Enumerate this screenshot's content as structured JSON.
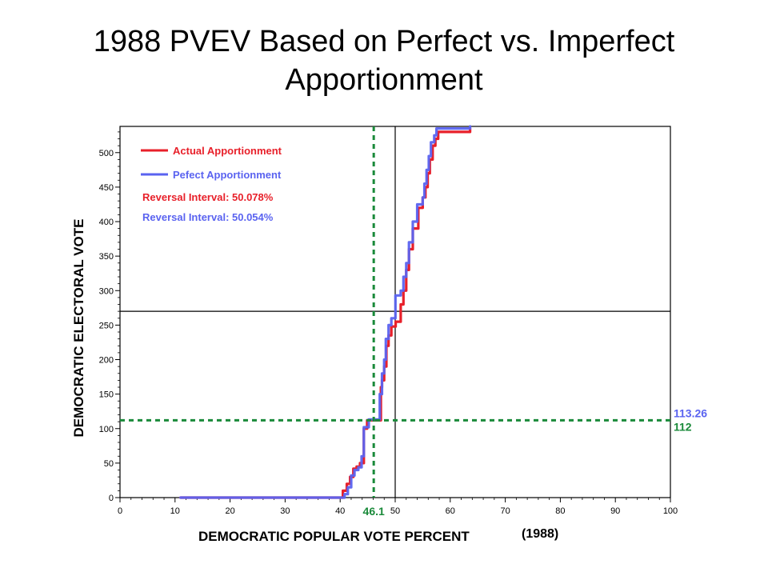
{
  "title_line1": "1988 PVEV Based on Perfect vs. Imperfect",
  "title_line2": "Apportionment",
  "colors": {
    "actual": "#e8202a",
    "perfect": "#5a63f0",
    "guide": "#1a8a3a",
    "axis": "#000000"
  },
  "chart_data": {
    "type": "line",
    "xlabel": "DEMOCRATIC POPULAR VOTE PERCENT",
    "xlabel_suffix": "(1988)",
    "ylabel": "DEMOCRATIC ELECTORAL VOTE",
    "xlim": [
      0,
      100
    ],
    "ylim": [
      0,
      538
    ],
    "x_ticks": [
      0,
      10,
      20,
      30,
      40,
      50,
      60,
      70,
      80,
      90,
      100
    ],
    "y_ticks": [
      0,
      50,
      100,
      150,
      200,
      250,
      300,
      350,
      400,
      450,
      500
    ],
    "legend": {
      "position": "top-left",
      "entries": [
        {
          "series": "actual",
          "label": "Actual Apportionment"
        },
        {
          "series": "perfect",
          "label": "Pefect Apportionment"
        }
      ],
      "notes": [
        {
          "series": "actual",
          "text": "Reversal Interval: 50.078%"
        },
        {
          "series": "perfect",
          "text": "Reversal Interval: 50.054%"
        }
      ]
    },
    "reference_lines": {
      "vertical": 50,
      "horizontal": 270
    },
    "guide_lines": {
      "vertical": 46.1,
      "horizontal": 112
    },
    "annotations": [
      {
        "text": "46.1",
        "series": "guide"
      },
      {
        "text": "113.26",
        "series": "perfect"
      },
      {
        "text": "112",
        "series": "guide"
      }
    ],
    "series": [
      {
        "name": "Actual Apportionment",
        "key": "actual",
        "x": [
          11,
          40.5,
          41.2,
          41.8,
          42.4,
          43,
          43.6,
          44.3,
          44.9,
          46.1,
          47.4,
          47.6,
          48,
          48.4,
          48.8,
          49.3,
          50.08,
          51,
          51.5,
          52,
          52.5,
          53.2,
          54.2,
          55,
          55.5,
          55.9,
          56.3,
          56.8,
          57.3,
          57.8,
          63.6
        ],
        "y": [
          0,
          10,
          20,
          30,
          42,
          45,
          50,
          100,
          112,
          112,
          160,
          170,
          190,
          220,
          235,
          248,
          255,
          280,
          300,
          330,
          360,
          390,
          420,
          435,
          450,
          470,
          490,
          510,
          520,
          530,
          535
        ]
      },
      {
        "name": "Pefect Apportionment",
        "key": "perfect",
        "x": [
          11,
          40.8,
          41.4,
          42,
          42.6,
          43.3,
          43.9,
          44.3,
          45.2,
          46.4,
          47.2,
          47.6,
          48,
          48.3,
          48.8,
          49.3,
          50.05,
          51,
          51.5,
          52,
          52.5,
          53.2,
          54,
          55,
          55.3,
          55.7,
          56.1,
          56.5,
          57.1,
          57.5,
          63.6
        ],
        "y": [
          0,
          5,
          15,
          32,
          40,
          44,
          60,
          102,
          113.26,
          113.26,
          150,
          180,
          200,
          230,
          250,
          260,
          293,
          300,
          320,
          340,
          370,
          400,
          425,
          435,
          455,
          475,
          495,
          515,
          525,
          535,
          538
        ]
      }
    ]
  }
}
